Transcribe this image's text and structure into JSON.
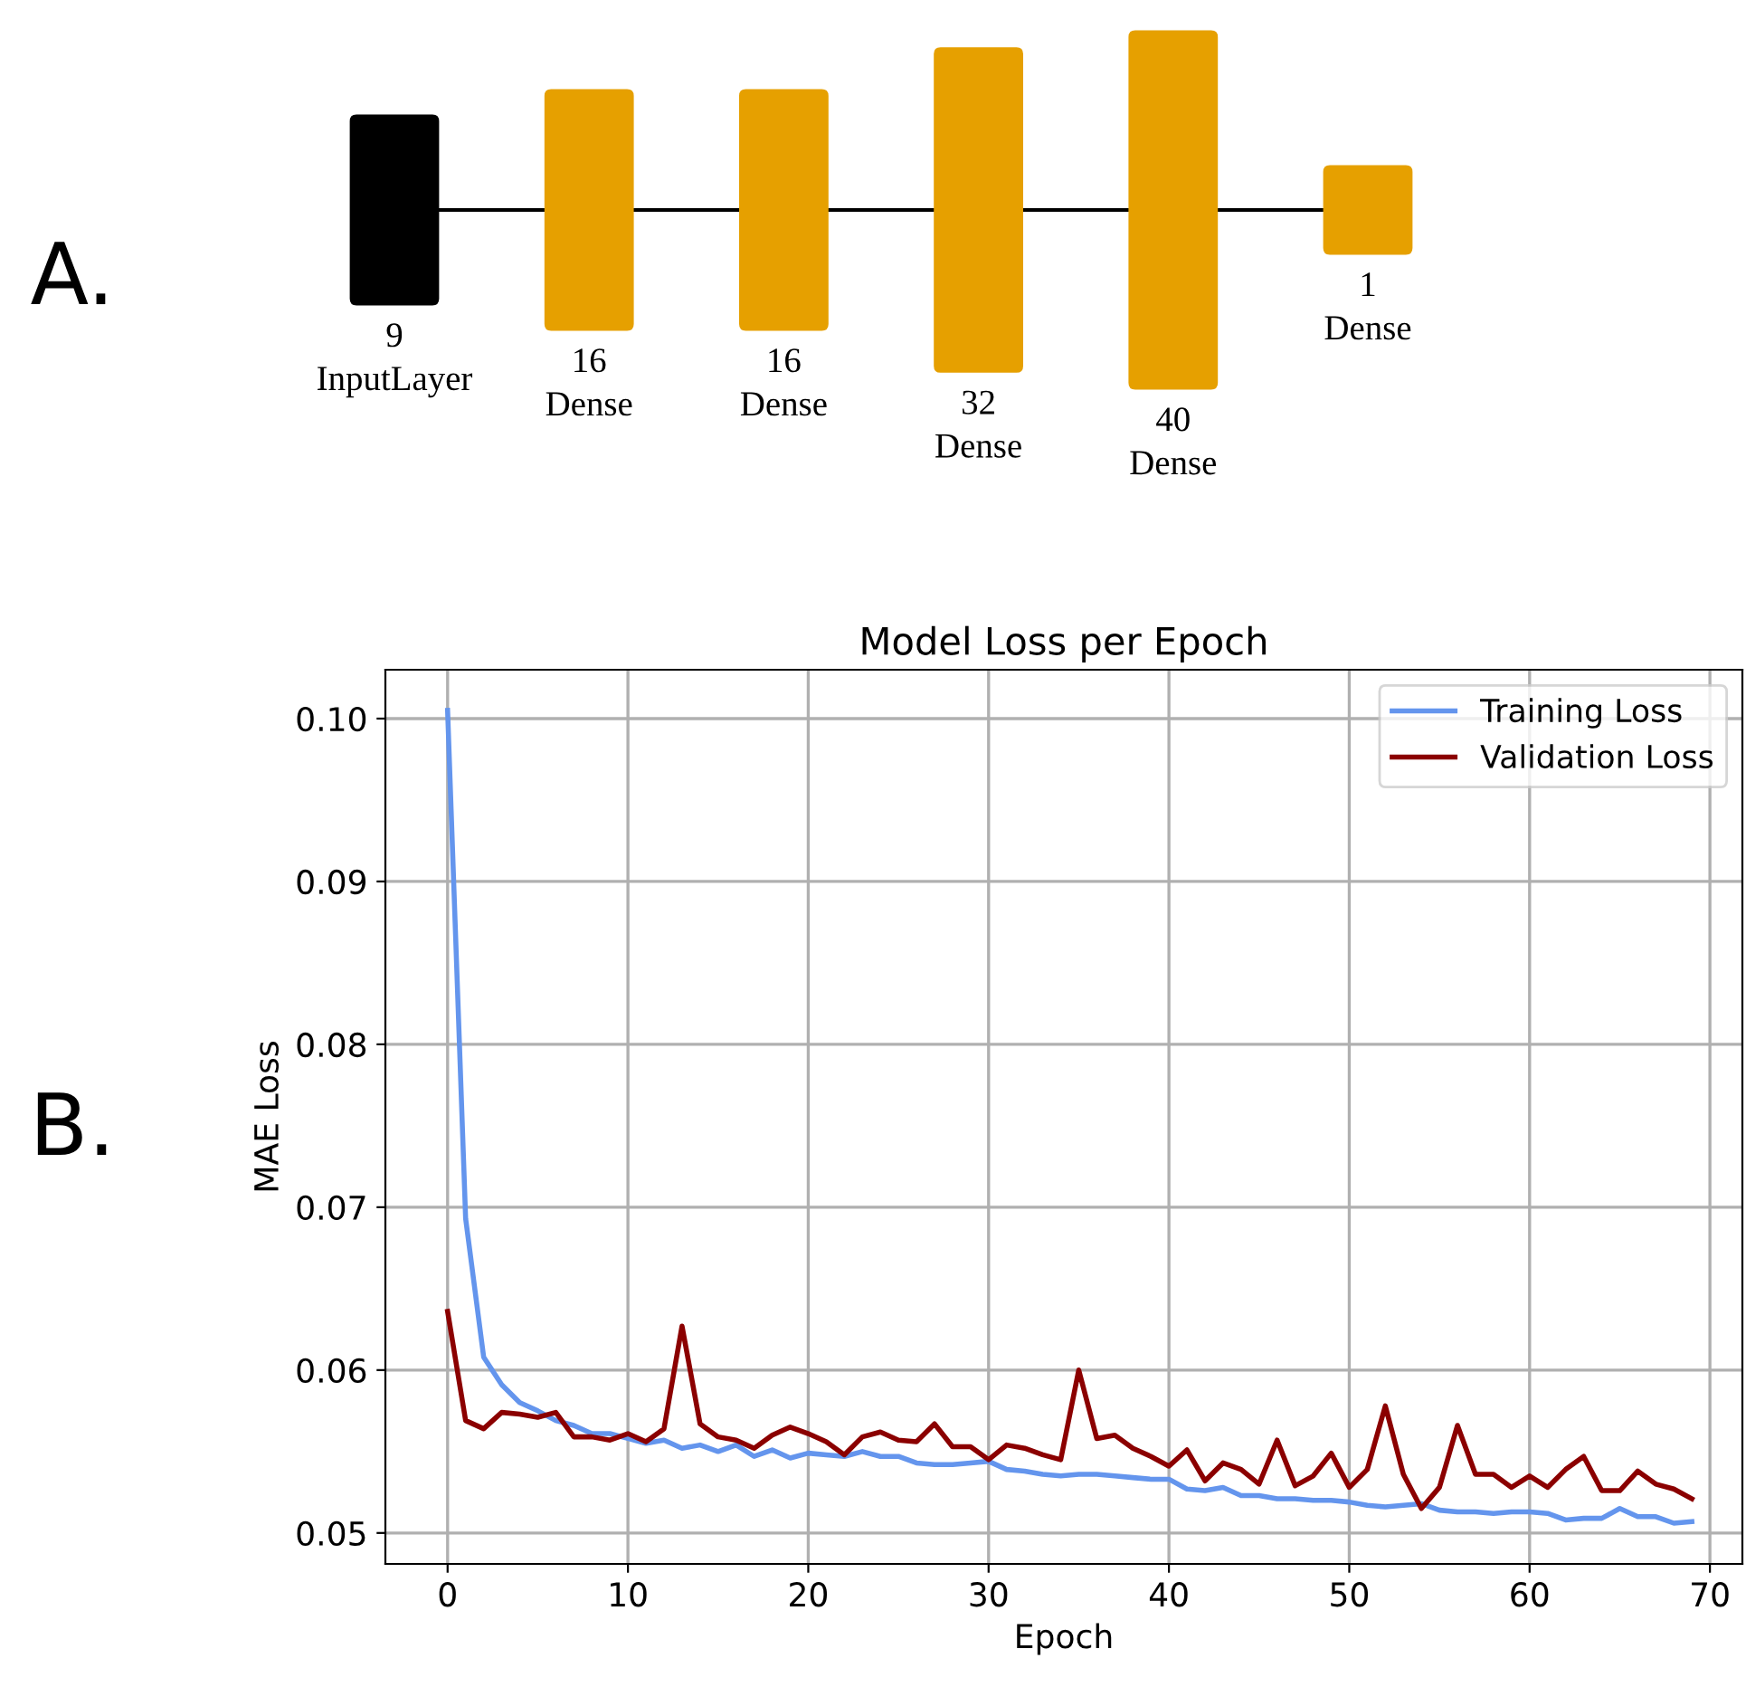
{
  "chart_data": [
    {
      "type": "other",
      "categories": [
        "InputLayer",
        "Dense",
        "Dense",
        "Dense",
        "Dense",
        "Dense"
      ],
      "values": [
        9,
        16,
        16,
        32,
        40,
        1
      ],
      "value_labels": [
        "9",
        "16",
        "16",
        "32",
        "40",
        "1"
      ],
      "colors": [
        "#000000",
        "#e6a000",
        "#e6a000",
        "#e6a000",
        "#e6a000",
        "#e6a000"
      ],
      "annotations": [
        "A."
      ]
    },
    {
      "type": "line",
      "title": "Model Loss per Epoch",
      "xlabel": "Epoch",
      "ylabel": "MAE Loss",
      "annotations": [
        "B."
      ],
      "x": [
        0,
        1,
        2,
        3,
        4,
        5,
        6,
        7,
        8,
        9,
        10,
        11,
        12,
        13,
        14,
        15,
        16,
        17,
        18,
        19,
        20,
        21,
        22,
        23,
        24,
        25,
        26,
        27,
        28,
        29,
        30,
        31,
        32,
        33,
        34,
        35,
        36,
        37,
        38,
        39,
        40,
        41,
        42,
        43,
        44,
        45,
        46,
        47,
        48,
        49,
        50,
        51,
        52,
        53,
        54,
        55,
        56,
        57,
        58,
        59,
        60,
        61,
        62,
        63,
        64,
        65,
        66,
        67,
        68,
        69
      ],
      "series": [
        {
          "name": "Training Loss",
          "color": "#6495ed",
          "values": [
            0.1005,
            0.0693,
            0.0608,
            0.0591,
            0.058,
            0.0575,
            0.0569,
            0.0566,
            0.0561,
            0.0561,
            0.0558,
            0.0555,
            0.0557,
            0.0552,
            0.0554,
            0.055,
            0.0554,
            0.0547,
            0.0551,
            0.0546,
            0.0549,
            0.0548,
            0.0547,
            0.055,
            0.0547,
            0.0547,
            0.0543,
            0.0542,
            0.0542,
            0.0543,
            0.0544,
            0.0539,
            0.0538,
            0.0536,
            0.0535,
            0.0536,
            0.0536,
            0.0535,
            0.0534,
            0.0533,
            0.0533,
            0.0527,
            0.0526,
            0.0528,
            0.0523,
            0.0523,
            0.0521,
            0.0521,
            0.052,
            0.052,
            0.0519,
            0.0517,
            0.0516,
            0.0517,
            0.0518,
            0.0514,
            0.0513,
            0.0513,
            0.0512,
            0.0513,
            0.0513,
            0.0512,
            0.0508,
            0.0509,
            0.0509,
            0.0515,
            0.051,
            0.051,
            0.0506,
            0.0507
          ]
        },
        {
          "name": "Validation Loss",
          "color": "#8b0000",
          "values": [
            0.0636,
            0.0569,
            0.0564,
            0.0574,
            0.0573,
            0.0571,
            0.0574,
            0.0559,
            0.0559,
            0.0557,
            0.0561,
            0.0556,
            0.0564,
            0.0627,
            0.0567,
            0.0559,
            0.0557,
            0.0552,
            0.056,
            0.0565,
            0.0561,
            0.0556,
            0.0548,
            0.0559,
            0.0562,
            0.0557,
            0.0556,
            0.0567,
            0.0553,
            0.0553,
            0.0545,
            0.0554,
            0.0552,
            0.0548,
            0.0545,
            0.06,
            0.0558,
            0.056,
            0.0552,
            0.0547,
            0.0541,
            0.0551,
            0.0532,
            0.0543,
            0.0539,
            0.053,
            0.0557,
            0.0529,
            0.0535,
            0.0549,
            0.0528,
            0.0539,
            0.0578,
            0.0536,
            0.0515,
            0.0528,
            0.0566,
            0.0536,
            0.0536,
            0.0528,
            0.0535,
            0.0528,
            0.0539,
            0.0547,
            0.0526,
            0.0526,
            0.0538,
            0.053,
            0.0527,
            0.0521
          ]
        }
      ],
      "xlim": [
        -3.45,
        71.8
      ],
      "ylim": [
        0.0481,
        0.103
      ],
      "xticks": [
        0,
        10,
        20,
        30,
        40,
        50,
        60,
        70
      ],
      "yticks": [
        0.05,
        0.06,
        0.07,
        0.08,
        0.09,
        {
          "value": 0.1,
          "label": "0.10"
        }
      ],
      "grid": true,
      "legend": "top right"
    }
  ]
}
